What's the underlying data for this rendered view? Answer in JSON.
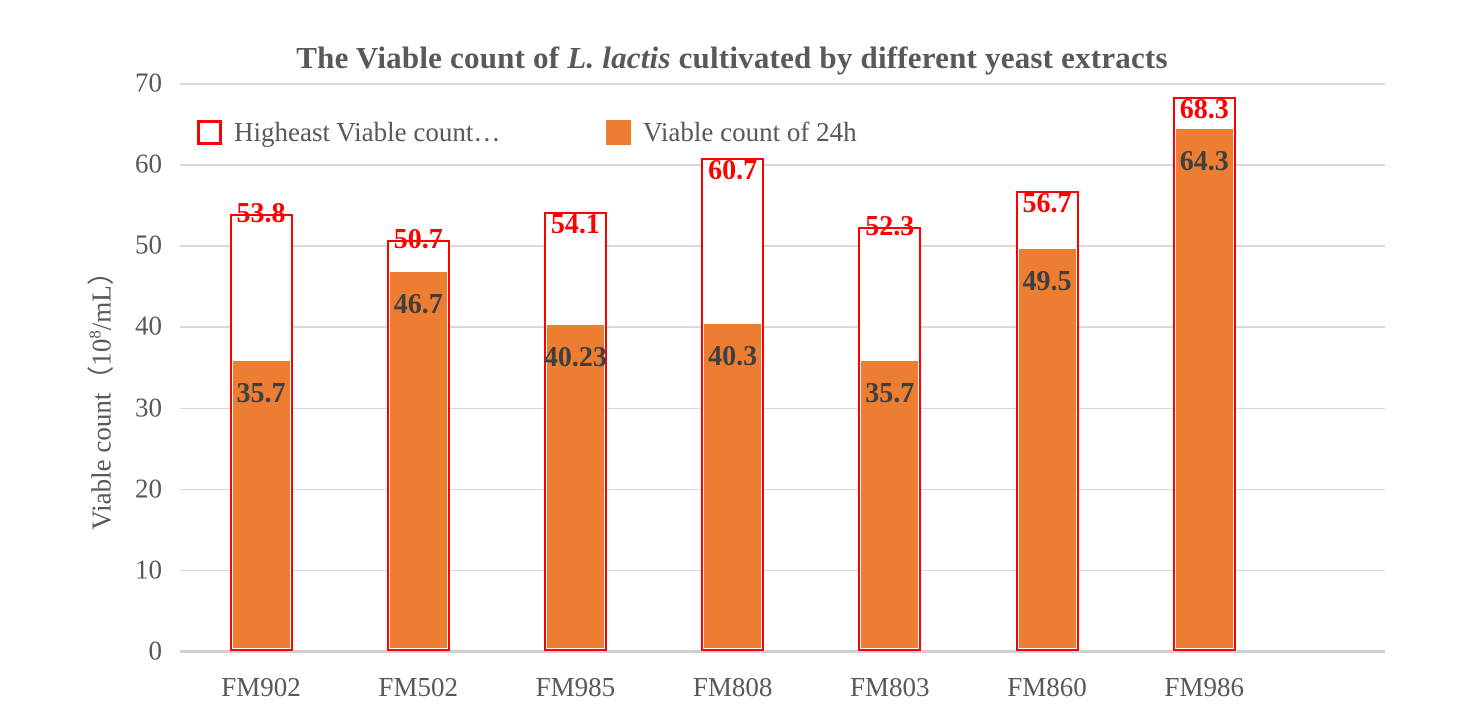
{
  "title": {
    "prefix": "The Viable count of ",
    "italic": "L. lactis",
    "suffix": " cultivated by different yeast extracts"
  },
  "y_axis": {
    "title_prefix": "Viable count（10",
    "title_sup": "8",
    "title_suffix": "/mL）",
    "tick_values": [
      0,
      10,
      20,
      30,
      40,
      50,
      60,
      70
    ],
    "max": 70
  },
  "legend": {
    "items": [
      {
        "label": "Higheast Viable count…",
        "swatch": "outline",
        "color": "#FF0000"
      },
      {
        "label": "Viable count of 24h",
        "swatch": "fill",
        "color": "#ED7D31"
      }
    ]
  },
  "chart_data": {
    "type": "bar",
    "title": "The Viable count of L. lactis cultivated by different yeast extracts",
    "categories": [
      "FM902",
      "FM502",
      "FM985",
      "FM808",
      "FM803",
      "FM860",
      "FM986"
    ],
    "series": [
      {
        "name": "Higheast Viable count…",
        "style": "outline",
        "color": "#FF0000",
        "label_color": "#FF0000",
        "values": [
          53.8,
          50.7,
          54.1,
          60.7,
          52.3,
          56.7,
          68.3
        ],
        "label_placements": [
          "on-edge",
          "on-edge",
          "inside",
          "inside",
          "on-edge",
          "inside",
          "inside"
        ]
      },
      {
        "name": "Viable count of 24h",
        "style": "fill",
        "color": "#ED7D31",
        "label_color": "#3F3F3F",
        "values": [
          35.7,
          46.7,
          40.23,
          40.3,
          35.7,
          49.5,
          64.3
        ]
      }
    ],
    "xlabel": "",
    "ylabel": "Viable count（10⁸/mL）",
    "ylim": [
      0,
      70
    ],
    "grid": true,
    "legend_position": "top-left",
    "gridline_color": "#D9D9D9",
    "axis_line_color": "#D0CECE",
    "axis_text_color": "#595959",
    "title_color": "#595959"
  }
}
